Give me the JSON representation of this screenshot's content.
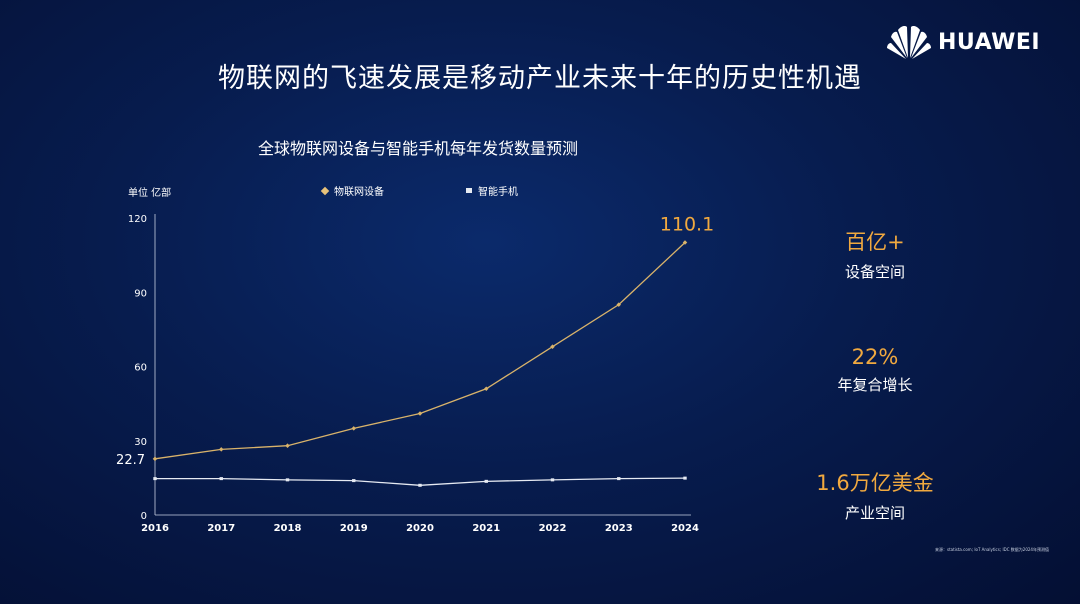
{
  "brand": {
    "name": "HUAWEI",
    "logo_icon": "huawei-petal-logo-icon",
    "logo_color": "#ffffff"
  },
  "page_title": "物联网的飞速发展是移动产业未来十年的历史性机遇",
  "chart_data": {
    "type": "line",
    "title": "全球物联网设备与智能手机每年发货数量预测",
    "unit_label": "单位 亿部",
    "x": [
      "2016",
      "2017",
      "2018",
      "2019",
      "2020",
      "2021",
      "2022",
      "2023",
      "2024"
    ],
    "ylim": [
      0,
      120
    ],
    "yticks": [
      "0",
      "30",
      "60",
      "90",
      "120"
    ],
    "legend_position": "top",
    "series": [
      {
        "name": "物联网设备",
        "marker": "diamond",
        "color": "#d9b36a",
        "values": [
          22.7,
          26.5,
          28,
          35,
          41,
          51,
          68,
          85,
          110.1
        ],
        "start_label": "22.7",
        "end_label": "110.1"
      },
      {
        "name": "智能手机",
        "marker": "square",
        "color": "#e6eaf2",
        "values": [
          14.7,
          14.7,
          14.2,
          13.9,
          12,
          13.6,
          14.2,
          14.7,
          14.9
        ]
      }
    ]
  },
  "stats": [
    {
      "value": "百亿+",
      "label": "设备空间"
    },
    {
      "value": "22%",
      "label": "年复合增长"
    },
    {
      "value": "1.6万亿美金",
      "label": "产业空间"
    }
  ],
  "source_note": "来源：statista.com; IoT Analytics; IDC 数据为2024年预测值",
  "colors": {
    "accent": "#f1a93f",
    "background": "#071c4e",
    "axis": "#c9d1e3"
  }
}
